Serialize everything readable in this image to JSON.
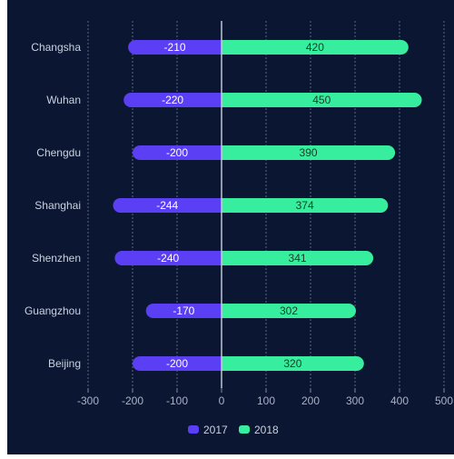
{
  "colors": {
    "background": "#0b1632",
    "page_margin": "#ffffff",
    "series_2017": "#5b3ff5",
    "series_2018": "#36ee9e",
    "axis_label": "#a8b3c7",
    "category_label": "#c9d2e0",
    "grid": "#7f8aa0",
    "zero_line": "#c9d2e0"
  },
  "chart_data": {
    "type": "bar",
    "orientation": "horizontal",
    "stacked": true,
    "categories": [
      "Changsha",
      "Wuhan",
      "Chengdu",
      "Shanghai",
      "Shenzhen",
      "Guangzhou",
      "Beijing"
    ],
    "series": [
      {
        "name": "2017",
        "values": [
          -210,
          -220,
          -200,
          -244,
          -240,
          -170,
          -200
        ]
      },
      {
        "name": "2018",
        "values": [
          420,
          450,
          390,
          374,
          341,
          302,
          320
        ]
      }
    ],
    "xlim": [
      -300,
      500
    ],
    "xticks": [
      -300,
      -200,
      -100,
      0,
      100,
      200,
      300,
      400,
      500
    ],
    "title": "",
    "xlabel": "",
    "ylabel": "",
    "grid": "vertical dashed",
    "legend_position": "bottom-center",
    "data_labels": "inside bars"
  },
  "legend": {
    "items": [
      {
        "label": "2017",
        "icon": "rounded-rect-icon"
      },
      {
        "label": "2018",
        "icon": "rounded-rect-icon"
      }
    ]
  }
}
